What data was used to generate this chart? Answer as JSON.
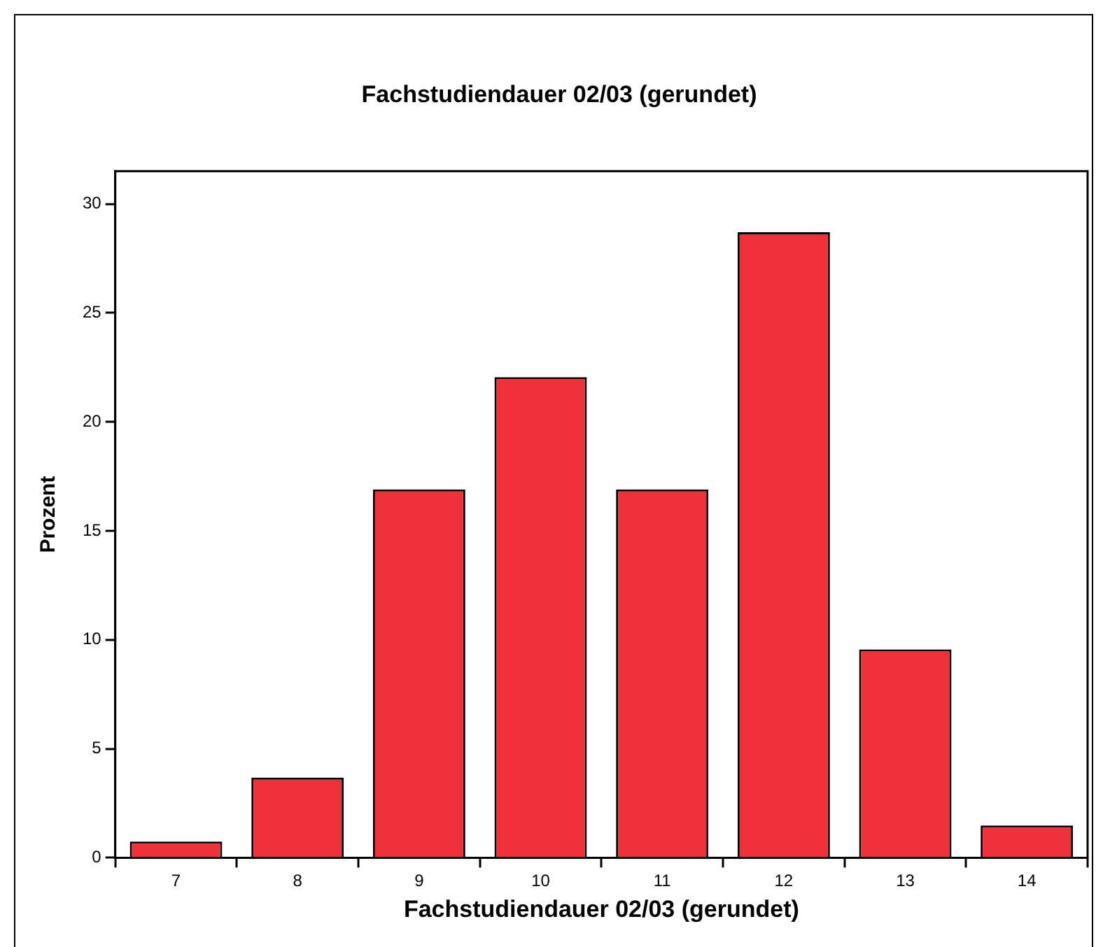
{
  "chart_data": {
    "type": "bar",
    "title": "Fachstudiendauer 02/03 (gerundet)",
    "xlabel": "Fachstudiendauer 02/03 (gerundet)",
    "ylabel": "Prozent",
    "categories": [
      "7",
      "8",
      "9",
      "10",
      "11",
      "12",
      "13",
      "14"
    ],
    "values": [
      0.74,
      3.68,
      16.9,
      22.05,
      16.9,
      28.7,
      9.56,
      1.48
    ],
    "color": "#ef3239",
    "ylim": [
      0,
      31.5
    ],
    "yticks": [
      0,
      5,
      10,
      15,
      20,
      25,
      30
    ],
    "grid": false,
    "legend": false
  }
}
